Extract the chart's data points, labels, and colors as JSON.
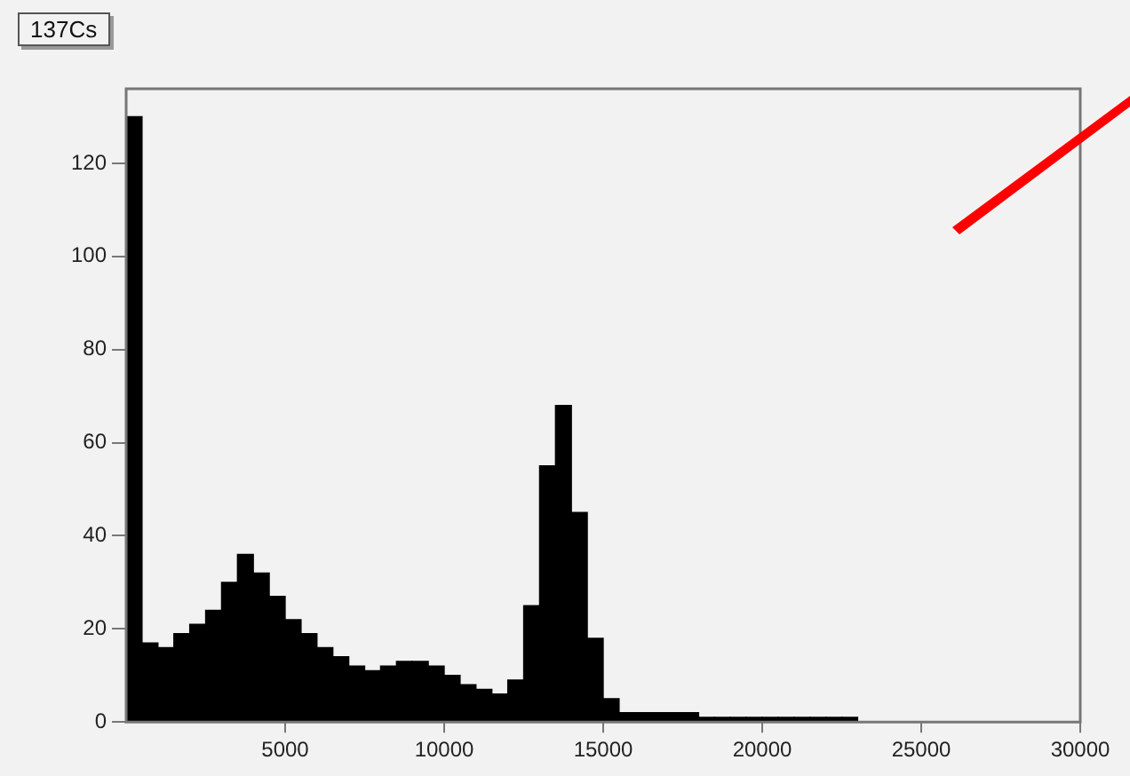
{
  "chart_data": {
    "type": "histogram",
    "title": "137Cs",
    "color": "#000000",
    "bins": [
      0,
      500,
      1000,
      1500,
      2000,
      2500,
      3000,
      3500,
      4000,
      4500,
      5000,
      5500,
      6000,
      6500,
      7000,
      7500,
      8000,
      8500,
      9000,
      9500,
      10000,
      10500,
      11000,
      11500,
      12000,
      12500,
      13000,
      13500,
      14000,
      14500,
      15000,
      15500,
      16000,
      16500,
      17000,
      17500,
      18000,
      18500,
      19000,
      19500,
      20000,
      20500,
      21000,
      21500,
      22000,
      22500,
      23000,
      23500,
      24000,
      24500,
      25000,
      25500,
      26000,
      26500,
      27000,
      27500,
      28000,
      28500,
      29000,
      29500,
      30000
    ],
    "values": [
      130,
      17,
      16,
      19,
      21,
      24,
      30,
      36,
      32,
      27,
      22,
      19,
      16,
      14,
      12,
      11,
      12,
      13,
      13,
      12,
      10,
      8,
      7,
      6,
      9,
      25,
      55,
      68,
      45,
      18,
      5,
      2,
      2,
      2,
      2,
      2,
      1,
      1,
      1,
      1,
      1,
      1,
      1,
      1,
      1,
      1,
      0,
      0,
      0,
      0,
      0,
      0,
      0,
      0,
      0,
      0,
      0,
      0,
      0,
      0
    ],
    "xlim": [
      0,
      30000
    ],
    "xticks": [
      5000,
      10000,
      15000,
      20000,
      25000,
      30000
    ],
    "ylim": [
      0,
      136
    ],
    "yticks": [
      0,
      20,
      40,
      60,
      80,
      100,
      120
    ],
    "grid": false,
    "legend": false
  }
}
